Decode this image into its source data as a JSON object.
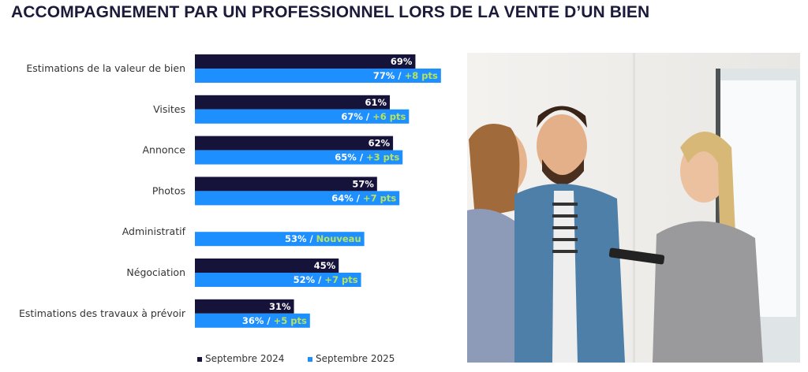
{
  "title": "ACCOMPAGNEMENT PAR UN PROFESSIONNEL LORS DE LA VENTE D’UN BIEN",
  "colors": {
    "series_2024": "#15133a",
    "series_2025": "#1e8fff",
    "delta": "#b8e35a"
  },
  "chart_data": {
    "type": "bar",
    "orientation": "horizontal",
    "categories": [
      "Estimations de la valeur de bien",
      "Visites",
      "Annonce",
      "Photos",
      "Administratif",
      "Négociation",
      "Estimations des travaux à prévoir"
    ],
    "series": [
      {
        "name": "Septembre 2024",
        "values": [
          69,
          61,
          62,
          57,
          null,
          45,
          31
        ]
      },
      {
        "name": "Septembre 2025",
        "values": [
          77,
          67,
          65,
          64,
          53,
          52,
          36
        ]
      }
    ],
    "deltas": [
      "+8 pts",
      "+6 pts",
      "+3 pts",
      "+7 pts",
      "Nouveau",
      "+7 pts",
      "+5 pts"
    ],
    "value_suffix": "%",
    "xlim": [
      0,
      100
    ],
    "legend": "bottom",
    "grid": false
  },
  "photo": {
    "description_icon": "photo-agent-couple"
  }
}
